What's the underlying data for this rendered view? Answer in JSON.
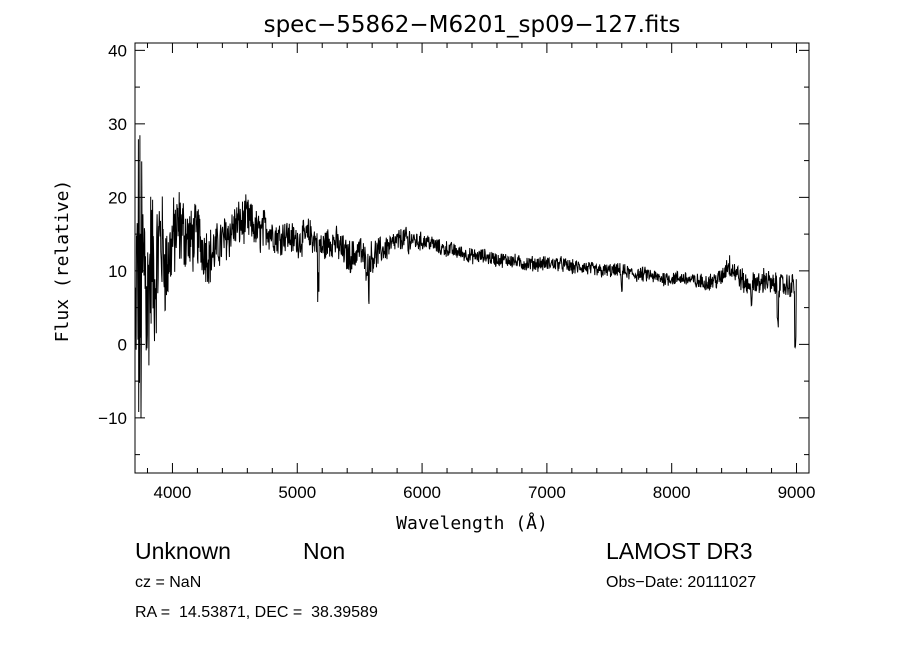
{
  "chart_data": {
    "type": "line",
    "title": "spec−55862−M6201_sp09−127.fits",
    "xlabel": "Wavelength (Å)",
    "ylabel": "Flux (relative)",
    "xlim": [
      3700,
      9100
    ],
    "ylim": [
      -17.5,
      41
    ],
    "x_ticks": [
      4000,
      5000,
      6000,
      7000,
      8000,
      9000
    ],
    "y_ticks": [
      -10,
      0,
      10,
      20,
      30,
      40
    ],
    "x_tick_labels": [
      "4000",
      "5000",
      "6000",
      "7000",
      "8000",
      "9000"
    ],
    "y_tick_labels": [
      "−10",
      "0",
      "10",
      "20",
      "30",
      "40"
    ],
    "grid": false,
    "series": [
      {
        "x": [
          3700,
          3720,
          3740,
          3760,
          3780,
          3800,
          3830,
          3860,
          3900,
          3950,
          4000,
          4050,
          4100,
          4150,
          4200,
          4250,
          4300,
          4350,
          4400,
          4450,
          4500,
          4550,
          4600,
          4650,
          4700,
          4750,
          4800,
          4850,
          4900,
          4950,
          5000,
          5050,
          5100,
          5150,
          5200,
          5250,
          5300,
          5350,
          5400,
          5450,
          5500,
          5550,
          5600,
          5650,
          5700,
          5750,
          5800,
          5850,
          5900,
          5950,
          6000,
          6050,
          6100,
          6150,
          6200,
          6300,
          6400,
          6500,
          6600,
          6700,
          6800,
          6900,
          7000,
          7100,
          7200,
          7300,
          7400,
          7500,
          7600,
          7700,
          7800,
          7900,
          8000,
          8100,
          8200,
          8300,
          8400,
          8450,
          8500,
          8550,
          8600,
          8650,
          8700,
          8750,
          8800,
          8850,
          8900,
          8950,
          9000
        ],
        "y": [
          0,
          10,
          5,
          8,
          12,
          5,
          12,
          8,
          15,
          10,
          14,
          16,
          15,
          14,
          15,
          13,
          12,
          13,
          14,
          15,
          16,
          16.5,
          17,
          16,
          15,
          16,
          15,
          14.5,
          15,
          14.5,
          14,
          14.5,
          15,
          14,
          13,
          14,
          14,
          13,
          12,
          12,
          13,
          11,
          12,
          12.5,
          13,
          13.5,
          14,
          14.5,
          14.5,
          14,
          14,
          14,
          13.5,
          13,
          13,
          12.5,
          12,
          12,
          11.5,
          11.5,
          11,
          11,
          11,
          11,
          10.5,
          10.5,
          10,
          10,
          10,
          9.5,
          9.5,
          9,
          9,
          9,
          8.5,
          8.5,
          9,
          11,
          10,
          9,
          8,
          9,
          8,
          9,
          8,
          8,
          8,
          8,
          8
        ],
        "noise": [
          6,
          20,
          22,
          18,
          14,
          12,
          10,
          8,
          7,
          6,
          5,
          5,
          4.5,
          4,
          4,
          3.5,
          3.5,
          3,
          3,
          3,
          3,
          2.8,
          2.8,
          2.5,
          2.5,
          2.5,
          2.2,
          2.2,
          2,
          2,
          2,
          2,
          2,
          2,
          2.2,
          2,
          2,
          2,
          2,
          2,
          2,
          2,
          2,
          1.8,
          1.6,
          1.5,
          1.4,
          1.3,
          1.2,
          1.2,
          1.1,
          1,
          1,
          1,
          1,
          0.9,
          0.9,
          0.9,
          0.9,
          0.9,
          0.9,
          0.9,
          0.9,
          0.9,
          0.9,
          0.9,
          0.9,
          0.9,
          0.9,
          0.9,
          0.9,
          0.9,
          0.9,
          0.9,
          1,
          1,
          1.2,
          1.5,
          1.5,
          1.5,
          1.5,
          1.5,
          1.5,
          1.5,
          1.5,
          1.5,
          1.5,
          1.5,
          1.5
        ]
      }
    ]
  },
  "info": {
    "object_class": "Unknown",
    "subclass": "Non",
    "survey": "LAMOST DR3",
    "cz": "cz = NaN",
    "obs_date": "Obs−Date: 20111027",
    "radec": "RA =  14.53871, DEC =  38.39589"
  }
}
